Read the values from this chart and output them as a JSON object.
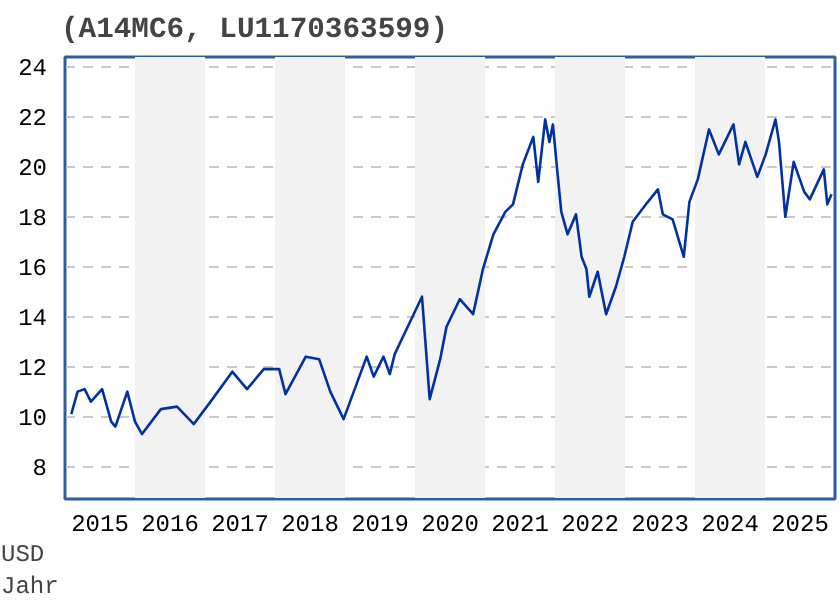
{
  "chart_data": {
    "type": "line",
    "title": "(A14MC6, LU1170363599)",
    "xlabel": "Jahr",
    "ylabel": "USD",
    "xlim": [
      2015,
      2026
    ],
    "ylim": [
      6.7,
      24.4
    ],
    "xticks": [
      {
        "value": 2015.5,
        "label": "2015"
      },
      {
        "value": 2016.5,
        "label": "2016"
      },
      {
        "value": 2017.5,
        "label": "2017"
      },
      {
        "value": 2018.5,
        "label": "2018"
      },
      {
        "value": 2019.5,
        "label": "2019"
      },
      {
        "value": 2020.5,
        "label": "2020"
      },
      {
        "value": 2021.5,
        "label": "2021"
      },
      {
        "value": 2022.5,
        "label": "2022"
      },
      {
        "value": 2023.5,
        "label": "2023"
      },
      {
        "value": 2024.5,
        "label": "2024"
      },
      {
        "value": 2025.5,
        "label": "2025"
      }
    ],
    "yticks": [
      8,
      10,
      12,
      14,
      16,
      18,
      20,
      22,
      24
    ],
    "grid": "y",
    "bands": [
      {
        "axis": "x",
        "from": 2016,
        "to": 2017,
        "color": "#f2f2f2"
      },
      {
        "axis": "x",
        "from": 2018,
        "to": 2019,
        "color": "#f2f2f2"
      },
      {
        "axis": "x",
        "from": 2020,
        "to": 2021,
        "color": "#f2f2f2"
      },
      {
        "axis": "x",
        "from": 2022,
        "to": 2023,
        "color": "#f2f2f2"
      },
      {
        "axis": "x",
        "from": 2024,
        "to": 2025,
        "color": "#f2f2f2"
      }
    ],
    "series": [
      {
        "color": "#0033a0",
        "x": [
          2015.09,
          2015.18,
          2015.28,
          2015.37,
          2015.53,
          2015.66,
          2015.72,
          2015.89,
          2016.0,
          2016.1,
          2016.37,
          2016.6,
          2016.84,
          2017.08,
          2017.39,
          2017.6,
          2017.84,
          2018.06,
          2018.15,
          2018.44,
          2018.63,
          2018.79,
          2018.98,
          2019.31,
          2019.41,
          2019.55,
          2019.64,
          2019.71,
          2019.93,
          2020.1,
          2020.21,
          2020.36,
          2020.45,
          2020.64,
          2020.83,
          2020.97,
          2021.12,
          2021.29,
          2021.4,
          2021.54,
          2021.69,
          2021.76,
          2021.86,
          2021.92,
          2021.97,
          2022.02,
          2022.09,
          2022.18,
          2022.3,
          2022.38,
          2022.45,
          2022.49,
          2022.61,
          2022.73,
          2022.87,
          2022.99,
          2023.11,
          2023.3,
          2023.47,
          2023.54,
          2023.68,
          2023.84,
          2023.92,
          2024.04,
          2024.2,
          2024.34,
          2024.55,
          2024.63,
          2024.72,
          2024.89,
          2025.01,
          2025.15,
          2025.2,
          2025.29,
          2025.41,
          2025.56,
          2025.64,
          2025.84,
          2025.89,
          2025.95
        ],
        "values": [
          10.1,
          11.0,
          11.1,
          10.6,
          11.1,
          9.8,
          9.6,
          11.0,
          9.8,
          9.3,
          10.3,
          10.4,
          9.7,
          10.6,
          11.8,
          11.1,
          11.9,
          11.9,
          10.9,
          12.4,
          12.3,
          11.0,
          9.9,
          12.4,
          11.6,
          12.4,
          11.7,
          12.5,
          13.8,
          14.8,
          10.7,
          12.3,
          13.6,
          14.7,
          14.1,
          15.9,
          17.3,
          18.2,
          18.5,
          20.1,
          21.2,
          19.4,
          21.9,
          21.0,
          21.7,
          20.2,
          18.2,
          17.3,
          18.1,
          16.4,
          15.9,
          14.8,
          15.8,
          14.1,
          15.2,
          16.4,
          17.8,
          18.5,
          19.1,
          18.1,
          17.9,
          16.4,
          18.6,
          19.5,
          21.5,
          20.5,
          21.7,
          20.1,
          21.0,
          19.6,
          20.5,
          21.9,
          21.0,
          18.0,
          20.2,
          19.0,
          18.7,
          19.9,
          18.5,
          18.9
        ]
      }
    ]
  }
}
